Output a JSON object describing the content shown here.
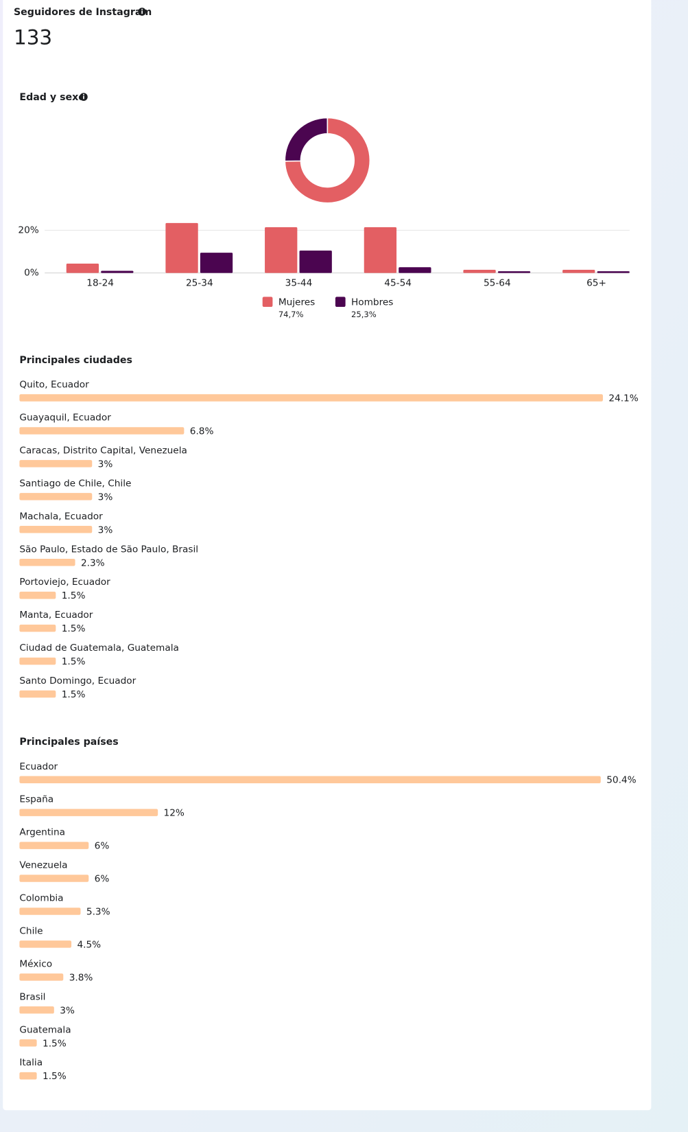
{
  "header": {
    "title": "Seguidores de Instagram",
    "total": "133"
  },
  "chart_data": [
    {
      "type": "bar",
      "title": "Edad y sexo",
      "categories": [
        "18-24",
        "25-34",
        "35-44",
        "45-54",
        "55-64",
        "65+"
      ],
      "series": [
        {
          "name": "Mujeres",
          "color": "#e35f63",
          "values": [
            4.4,
            23.4,
            21.4,
            21.4,
            1.5,
            1.5
          ]
        },
        {
          "name": "Hombres",
          "color": "#4b0550",
          "values": [
            1.0,
            9.5,
            10.5,
            2.7,
            0.8,
            0.8
          ]
        }
      ],
      "ylim": [
        0,
        25
      ],
      "yticks": [
        {
          "value": 0,
          "label": "0%"
        },
        {
          "value": 20,
          "label": "20%"
        }
      ],
      "grid": true,
      "legend": "bottom"
    },
    {
      "type": "pie",
      "donut": true,
      "values": [
        74.7,
        25.3
      ],
      "value_labels": [
        "74,7%",
        "25,3%"
      ],
      "colors": [
        "#e35f63",
        "#4b0550"
      ]
    },
    {
      "type": "hbar",
      "title": "Principales ciudades",
      "color": "#ffc89a",
      "categories": [
        "Quito, Ecuador",
        "Guayaquil, Ecuador",
        "Caracas, Distrito Capital, Venezuela",
        "Santiago de Chile, Chile",
        "Machala, Ecuador",
        "São Paulo, Estado de São Paulo, Brasil",
        "Portoviejo, Ecuador",
        "Manta, Ecuador",
        "Ciudad de Guatemala, Guatemala",
        "Santo Domingo, Ecuador"
      ],
      "values": [
        24.1,
        6.8,
        3,
        3,
        3,
        2.3,
        1.5,
        1.5,
        1.5,
        1.5
      ],
      "value_labels": [
        "24.1%",
        "6.8%",
        "3%",
        "3%",
        "3%",
        "2.3%",
        "1.5%",
        "1.5%",
        "1.5%",
        "1.5%"
      ]
    },
    {
      "type": "hbar",
      "title": "Principales países",
      "color": "#ffc89a",
      "categories": [
        "Ecuador",
        "España",
        "Argentina",
        "Venezuela",
        "Colombia",
        "Chile",
        "México",
        "Brasil",
        "Guatemala",
        "Italia"
      ],
      "values": [
        50.4,
        12,
        6,
        6,
        5.3,
        4.5,
        3.8,
        3,
        1.5,
        1.5
      ],
      "value_labels": [
        "50.4%",
        "12%",
        "6%",
        "6%",
        "5.3%",
        "4.5%",
        "3.8%",
        "3%",
        "1.5%",
        "1.5%"
      ]
    }
  ]
}
